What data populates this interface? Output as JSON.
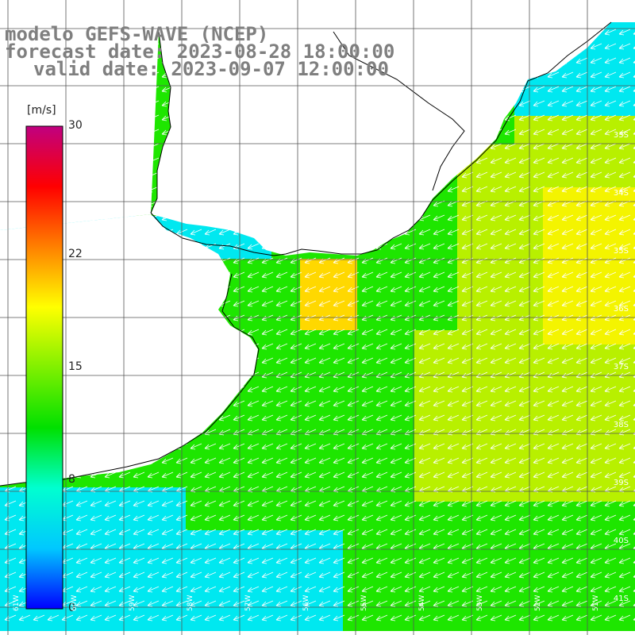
{
  "title": {
    "line1": "modelo GEFS-WAVE (NCEP)",
    "line2": "forecast date: 2023-08-28 18:00:00",
    "line3": "valid date: 2023-09-07 12:00:00"
  },
  "colorbar": {
    "unit": "[m/s]",
    "min": 0,
    "max": 30,
    "ticks": [
      "30",
      "22",
      "15",
      "8",
      "0"
    ],
    "tick_values": [
      30,
      22,
      15,
      8,
      0
    ],
    "colors": [
      "#0000ff",
      "#00c8ff",
      "#00ffd0",
      "#00e000",
      "#80f000",
      "#ffff00",
      "#ff8000",
      "#ff0000",
      "#c00080"
    ]
  },
  "map": {
    "lat_labels": [
      "33S",
      "34S",
      "35S",
      "36S",
      "37S",
      "38S",
      "39S",
      "40S",
      "41S"
    ],
    "lon_labels": [
      "61W",
      "60W",
      "59W",
      "58W",
      "57W",
      "56W",
      "55W",
      "54W",
      "53W",
      "52W",
      "51W"
    ],
    "land_color": "#ffffff",
    "grid_color": "#555555",
    "coast_color": "#000000",
    "wind_direction": "from northeast",
    "field_colors": {
      "cyan": "#00e8f0",
      "green": "#1ee600",
      "yellow_green": "#b8f000",
      "yellow": "#f4f400",
      "orange_yellow": "#ffd800"
    }
  }
}
